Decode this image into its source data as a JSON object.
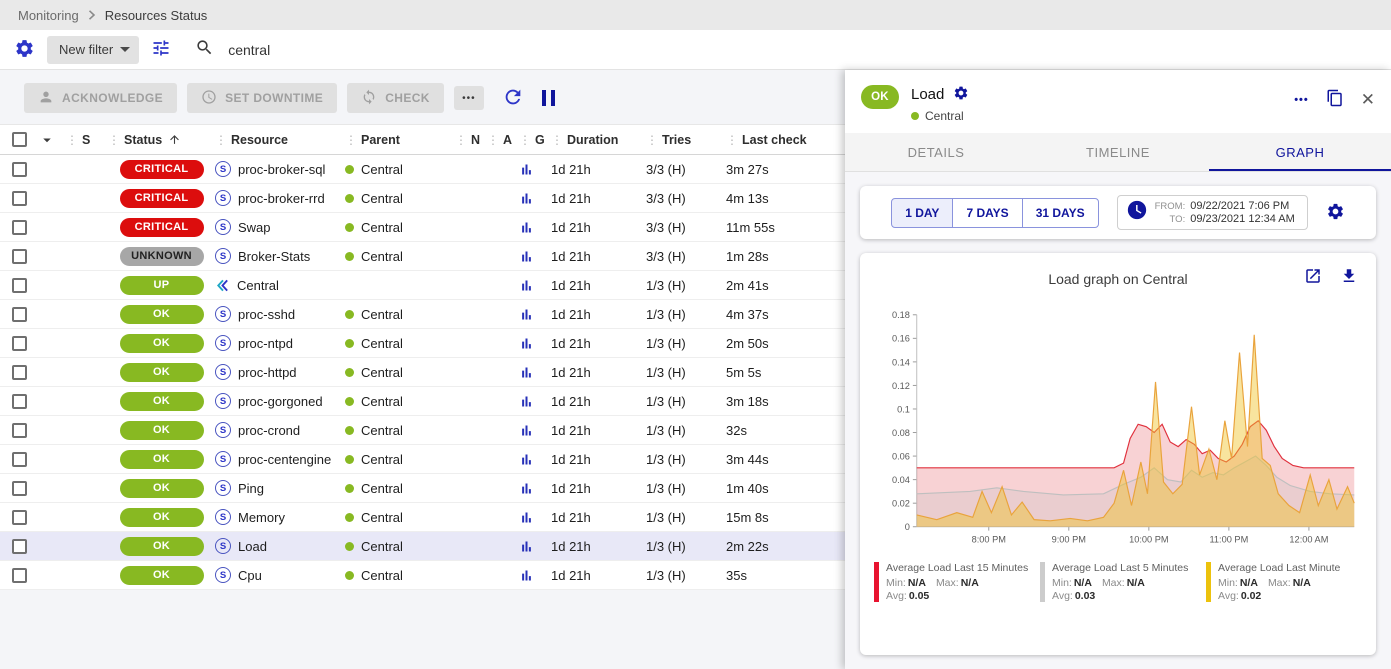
{
  "colors": {
    "primary_blue": "#2d35c8",
    "navy": "#10159c",
    "critical_bg": "#dc0d0d",
    "unknown_bg": "#a7a7a7",
    "ok_bg": "#88b922",
    "selected_row_bg": "#e8e8f7"
  },
  "breadcrumb": {
    "items": [
      "Monitoring",
      "Resources Status"
    ]
  },
  "filter_bar": {
    "new_filter_label": "New filter",
    "search_value": "central"
  },
  "toolbar": {
    "acknowledge_label": "ACKNOWLEDGE",
    "set_downtime_label": "SET DOWNTIME",
    "check_label": "CHECK"
  },
  "table": {
    "service_badge": "S",
    "headers": {
      "severity": "S",
      "status": "Status",
      "resource": "Resource",
      "parent": "Parent",
      "n": "N",
      "a": "A",
      "g": "G",
      "duration": "Duration",
      "tries": "Tries",
      "last_check": "Last check"
    },
    "rows": [
      {
        "status": "CRITICAL",
        "status_type": "critical",
        "kind": "service",
        "resource": "proc-broker-sql",
        "parent": "Central",
        "duration": "1d 21h",
        "tries": "3/3 (H)",
        "last_check": "3m 27s",
        "selected": false
      },
      {
        "status": "CRITICAL",
        "status_type": "critical",
        "kind": "service",
        "resource": "proc-broker-rrd",
        "parent": "Central",
        "duration": "1d 21h",
        "tries": "3/3 (H)",
        "last_check": "4m 13s",
        "selected": false
      },
      {
        "status": "CRITICAL",
        "status_type": "critical",
        "kind": "service",
        "resource": "Swap",
        "parent": "Central",
        "duration": "1d 21h",
        "tries": "3/3 (H)",
        "last_check": "11m 55s",
        "selected": false
      },
      {
        "status": "UNKNOWN",
        "status_type": "unknown",
        "kind": "service",
        "resource": "Broker-Stats",
        "parent": "Central",
        "duration": "1d 21h",
        "tries": "3/3 (H)",
        "last_check": "1m 28s",
        "selected": false
      },
      {
        "status": "UP",
        "status_type": "up",
        "kind": "host",
        "resource": "Central",
        "parent": "",
        "duration": "1d 21h",
        "tries": "1/3 (H)",
        "last_check": "2m 41s",
        "selected": false
      },
      {
        "status": "OK",
        "status_type": "ok",
        "kind": "service",
        "resource": "proc-sshd",
        "parent": "Central",
        "duration": "1d 21h",
        "tries": "1/3 (H)",
        "last_check": "4m 37s",
        "selected": false
      },
      {
        "status": "OK",
        "status_type": "ok",
        "kind": "service",
        "resource": "proc-ntpd",
        "parent": "Central",
        "duration": "1d 21h",
        "tries": "1/3 (H)",
        "last_check": "2m 50s",
        "selected": false
      },
      {
        "status": "OK",
        "status_type": "ok",
        "kind": "service",
        "resource": "proc-httpd",
        "parent": "Central",
        "duration": "1d 21h",
        "tries": "1/3 (H)",
        "last_check": "5m 5s",
        "selected": false
      },
      {
        "status": "OK",
        "status_type": "ok",
        "kind": "service",
        "resource": "proc-gorgoned",
        "parent": "Central",
        "duration": "1d 21h",
        "tries": "1/3 (H)",
        "last_check": "3m 18s",
        "selected": false
      },
      {
        "status": "OK",
        "status_type": "ok",
        "kind": "service",
        "resource": "proc-crond",
        "parent": "Central",
        "duration": "1d 21h",
        "tries": "1/3 (H)",
        "last_check": "32s",
        "selected": false
      },
      {
        "status": "OK",
        "status_type": "ok",
        "kind": "service",
        "resource": "proc-centengine",
        "parent": "Central",
        "duration": "1d 21h",
        "tries": "1/3 (H)",
        "last_check": "3m 44s",
        "selected": false
      },
      {
        "status": "OK",
        "status_type": "ok",
        "kind": "service",
        "resource": "Ping",
        "parent": "Central",
        "duration": "1d 21h",
        "tries": "1/3 (H)",
        "last_check": "1m 40s",
        "selected": false
      },
      {
        "status": "OK",
        "status_type": "ok",
        "kind": "service",
        "resource": "Memory",
        "parent": "Central",
        "duration": "1d 21h",
        "tries": "1/3 (H)",
        "last_check": "15m 8s",
        "selected": false
      },
      {
        "status": "OK",
        "status_type": "ok",
        "kind": "service",
        "resource": "Load",
        "parent": "Central",
        "duration": "1d 21h",
        "tries": "1/3 (H)",
        "last_check": "2m 22s",
        "selected": true
      },
      {
        "status": "OK",
        "status_type": "ok",
        "kind": "service",
        "resource": "Cpu",
        "parent": "Central",
        "duration": "1d 21h",
        "tries": "1/3 (H)",
        "last_check": "35s",
        "selected": false
      }
    ]
  },
  "panel": {
    "status_badge": "OK",
    "title": "Load",
    "parent": "Central",
    "tabs": [
      "DETAILS",
      "TIMELINE",
      "GRAPH"
    ],
    "active_tab": "GRAPH",
    "periods": [
      "1 DAY",
      "7 DAYS",
      "31 DAYS"
    ],
    "selected_period": "1 DAY",
    "from_label": "FROM:",
    "from_value": "09/22/2021 7:06 PM",
    "to_label": "TO:",
    "to_value": "09/23/2021 12:34 AM",
    "graph_title": "Load graph on Central"
  },
  "chart_data": {
    "type": "area",
    "title": "Load graph on Central",
    "ylim": [
      0,
      0.18
    ],
    "yticks": [
      {
        "v": 0.18,
        "label": "0.18"
      },
      {
        "v": 0.16,
        "label": "0.16"
      },
      {
        "v": 0.14,
        "label": "0.14"
      },
      {
        "v": 0.12,
        "label": "0.12"
      },
      {
        "v": 0.1,
        "label": "0.1"
      },
      {
        "v": 0.08,
        "label": "0.08"
      },
      {
        "v": 0.06,
        "label": "0.06"
      },
      {
        "v": 0.04,
        "label": "0.04"
      },
      {
        "v": 0.02,
        "label": "0.02"
      },
      {
        "v": 0,
        "label": "0"
      }
    ],
    "x_range": [
      0,
      328
    ],
    "x_unit": "minutes after 09/22/2021 7:06 PM",
    "xticks": [
      {
        "t": 54,
        "label": "8:00 PM"
      },
      {
        "t": 114,
        "label": "9:00 PM"
      },
      {
        "t": 174,
        "label": "10:00 PM"
      },
      {
        "t": 234,
        "label": "11:00 PM"
      },
      {
        "t": 294,
        "label": "12:00 AM"
      }
    ],
    "legend_labels": {
      "min": "Min:",
      "max": "Max:",
      "avg": "Avg:"
    },
    "series": [
      {
        "name": "Average Load Last 15 Minutes",
        "color": "#e0313d",
        "fill": "rgba(224,49,61,0.22)",
        "legend_color": "#e8132f",
        "min": "N/A",
        "max": "N/A",
        "avg": "0.05",
        "points": [
          [
            0,
            0.05
          ],
          [
            148,
            0.05
          ],
          [
            155,
            0.054
          ],
          [
            160,
            0.075
          ],
          [
            166,
            0.087
          ],
          [
            172,
            0.085
          ],
          [
            178,
            0.08
          ],
          [
            184,
            0.087
          ],
          [
            190,
            0.072
          ],
          [
            196,
            0.068
          ],
          [
            202,
            0.074
          ],
          [
            208,
            0.07
          ],
          [
            214,
            0.062
          ],
          [
            220,
            0.065
          ],
          [
            226,
            0.058
          ],
          [
            232,
            0.055
          ],
          [
            238,
            0.06
          ],
          [
            244,
            0.07
          ],
          [
            250,
            0.085
          ],
          [
            256,
            0.09
          ],
          [
            262,
            0.082
          ],
          [
            268,
            0.068
          ],
          [
            274,
            0.058
          ],
          [
            282,
            0.052
          ],
          [
            290,
            0.05
          ],
          [
            328,
            0.05
          ]
        ]
      },
      {
        "name": "Average Load Last 5 Minutes",
        "color": "#bfbfbf",
        "fill": "rgba(190,190,190,0.25)",
        "legend_color": "#cccccc",
        "min": "N/A",
        "max": "N/A",
        "avg": "0.03",
        "points": [
          [
            0,
            0.028
          ],
          [
            40,
            0.03
          ],
          [
            60,
            0.033
          ],
          [
            80,
            0.03
          ],
          [
            110,
            0.027
          ],
          [
            140,
            0.028
          ],
          [
            155,
            0.036
          ],
          [
            168,
            0.042
          ],
          [
            178,
            0.05
          ],
          [
            188,
            0.04
          ],
          [
            198,
            0.038
          ],
          [
            206,
            0.048
          ],
          [
            214,
            0.042
          ],
          [
            222,
            0.046
          ],
          [
            230,
            0.044
          ],
          [
            238,
            0.05
          ],
          [
            246,
            0.055
          ],
          [
            254,
            0.06
          ],
          [
            262,
            0.052
          ],
          [
            270,
            0.042
          ],
          [
            280,
            0.035
          ],
          [
            295,
            0.03
          ],
          [
            310,
            0.028
          ],
          [
            328,
            0.027
          ]
        ]
      },
      {
        "name": "Average Load Last Minute",
        "color": "#e9a33c",
        "fill": "rgba(240,195,40,0.45)",
        "legend_color": "#ecc20d",
        "min": "N/A",
        "max": "N/A",
        "avg": "0.02",
        "points": [
          [
            0,
            0.01
          ],
          [
            15,
            0.006
          ],
          [
            30,
            0.012
          ],
          [
            42,
            0.008
          ],
          [
            49,
            0.03
          ],
          [
            56,
            0.012
          ],
          [
            64,
            0.034
          ],
          [
            71,
            0.01
          ],
          [
            79,
            0.021
          ],
          [
            88,
            0.006
          ],
          [
            100,
            0.005
          ],
          [
            115,
            0.007
          ],
          [
            128,
            0.005
          ],
          [
            140,
            0.008
          ],
          [
            148,
            0.02
          ],
          [
            155,
            0.048
          ],
          [
            161,
            0.018
          ],
          [
            168,
            0.055
          ],
          [
            173,
            0.028
          ],
          [
            179,
            0.123
          ],
          [
            185,
            0.038
          ],
          [
            192,
            0.028
          ],
          [
            199,
            0.036
          ],
          [
            206,
            0.102
          ],
          [
            212,
            0.044
          ],
          [
            219,
            0.066
          ],
          [
            225,
            0.04
          ],
          [
            231,
            0.09
          ],
          [
            236,
            0.058
          ],
          [
            242,
            0.148
          ],
          [
            248,
            0.068
          ],
          [
            253,
            0.163
          ],
          [
            259,
            0.058
          ],
          [
            265,
            0.052
          ],
          [
            271,
            0.028
          ],
          [
            279,
            0.018
          ],
          [
            287,
            0.012
          ],
          [
            295,
            0.044
          ],
          [
            301,
            0.018
          ],
          [
            309,
            0.04
          ],
          [
            315,
            0.015
          ],
          [
            323,
            0.034
          ],
          [
            328,
            0.02
          ]
        ]
      }
    ]
  }
}
